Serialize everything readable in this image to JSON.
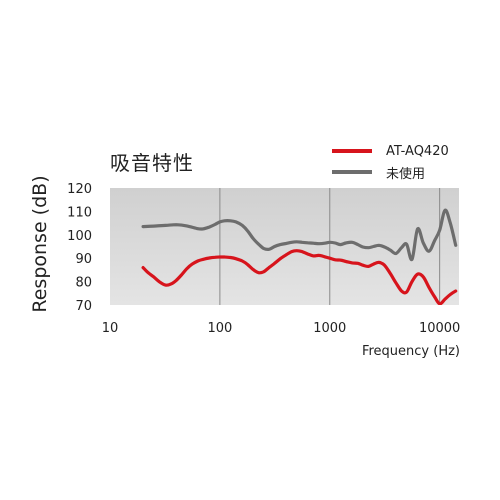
{
  "chart_data": {
    "type": "line",
    "title": "吸音特性",
    "xlabel": "Frequency (Hz)",
    "ylabel": "Response (dB)",
    "x_scale": "log",
    "xlim": [
      10,
      15000
    ],
    "ylim": [
      70,
      120
    ],
    "x_ticks": [
      10,
      100,
      1000,
      10000
    ],
    "x_tick_labels": [
      "10",
      "100",
      "1000",
      "10000"
    ],
    "y_ticks": [
      70,
      80,
      90,
      100,
      110,
      120
    ],
    "y_tick_labels": [
      "70",
      "80",
      "90",
      "100",
      "110",
      "120"
    ],
    "grid": "vertical",
    "legend_position": "top-right",
    "series": [
      {
        "name": "AT-AQ420",
        "color": "#d7141c",
        "x": [
          20,
          22,
          25,
          28,
          32,
          36,
          40,
          45,
          50,
          56,
          63,
          70,
          80,
          90,
          100,
          110,
          125,
          140,
          160,
          180,
          200,
          225,
          250,
          280,
          315,
          355,
          400,
          450,
          500,
          560,
          630,
          710,
          800,
          900,
          1000,
          1120,
          1250,
          1400,
          1600,
          1800,
          2000,
          2250,
          2500,
          2800,
          3150,
          3550,
          4000,
          4500,
          5000,
          5600,
          6300,
          7100,
          8000,
          9000,
          10000,
          11200,
          12500,
          14000
        ],
        "y": [
          86,
          84,
          82,
          80,
          78.5,
          79,
          80.5,
          83,
          85.5,
          87.5,
          88.8,
          89.5,
          90.1,
          90.4,
          90.5,
          90.5,
          90.3,
          89.8,
          88.8,
          87.2,
          85.2,
          83.8,
          84.2,
          86,
          87.8,
          89.8,
          91.4,
          92.8,
          93.2,
          92.8,
          91.8,
          91,
          91.2,
          90.6,
          90,
          89.3,
          89.2,
          88.6,
          88,
          87.8,
          87,
          86.5,
          87.5,
          88.2,
          87,
          83.5,
          79.5,
          76,
          75.5,
          80,
          83.2,
          82,
          77.5,
          73.5,
          70.5,
          72.5,
          74.5,
          76
        ]
      },
      {
        "name": "未使用",
        "color": "#6d6d6d",
        "x": [
          20,
          25,
          32,
          40,
          50,
          63,
          70,
          80,
          90,
          100,
          110,
          125,
          140,
          160,
          180,
          200,
          225,
          250,
          280,
          315,
          355,
          400,
          450,
          500,
          560,
          630,
          710,
          800,
          900,
          1000,
          1120,
          1250,
          1400,
          1600,
          1800,
          2000,
          2250,
          2500,
          2800,
          3150,
          3550,
          4000,
          4500,
          5000,
          5600,
          6300,
          7100,
          8000,
          9000,
          10000,
          11200,
          12500,
          14000
        ],
        "y": [
          103.5,
          103.7,
          104,
          104.3,
          103.8,
          102.6,
          102.5,
          103.3,
          104.4,
          105.5,
          106,
          106,
          105.5,
          104,
          101.5,
          98.5,
          96,
          94.2,
          93.8,
          95,
          95.8,
          96.3,
          96.8,
          97,
          96.8,
          96.6,
          96.4,
          96.2,
          96.4,
          96.8,
          96.5,
          95.8,
          96.5,
          96.8,
          95.8,
          94.8,
          94.5,
          95,
          95.5,
          94.8,
          93.5,
          92,
          94.5,
          96,
          89.5,
          102.5,
          96.5,
          93,
          97.5,
          102,
          110.5,
          105,
          95.5
        ]
      }
    ]
  }
}
